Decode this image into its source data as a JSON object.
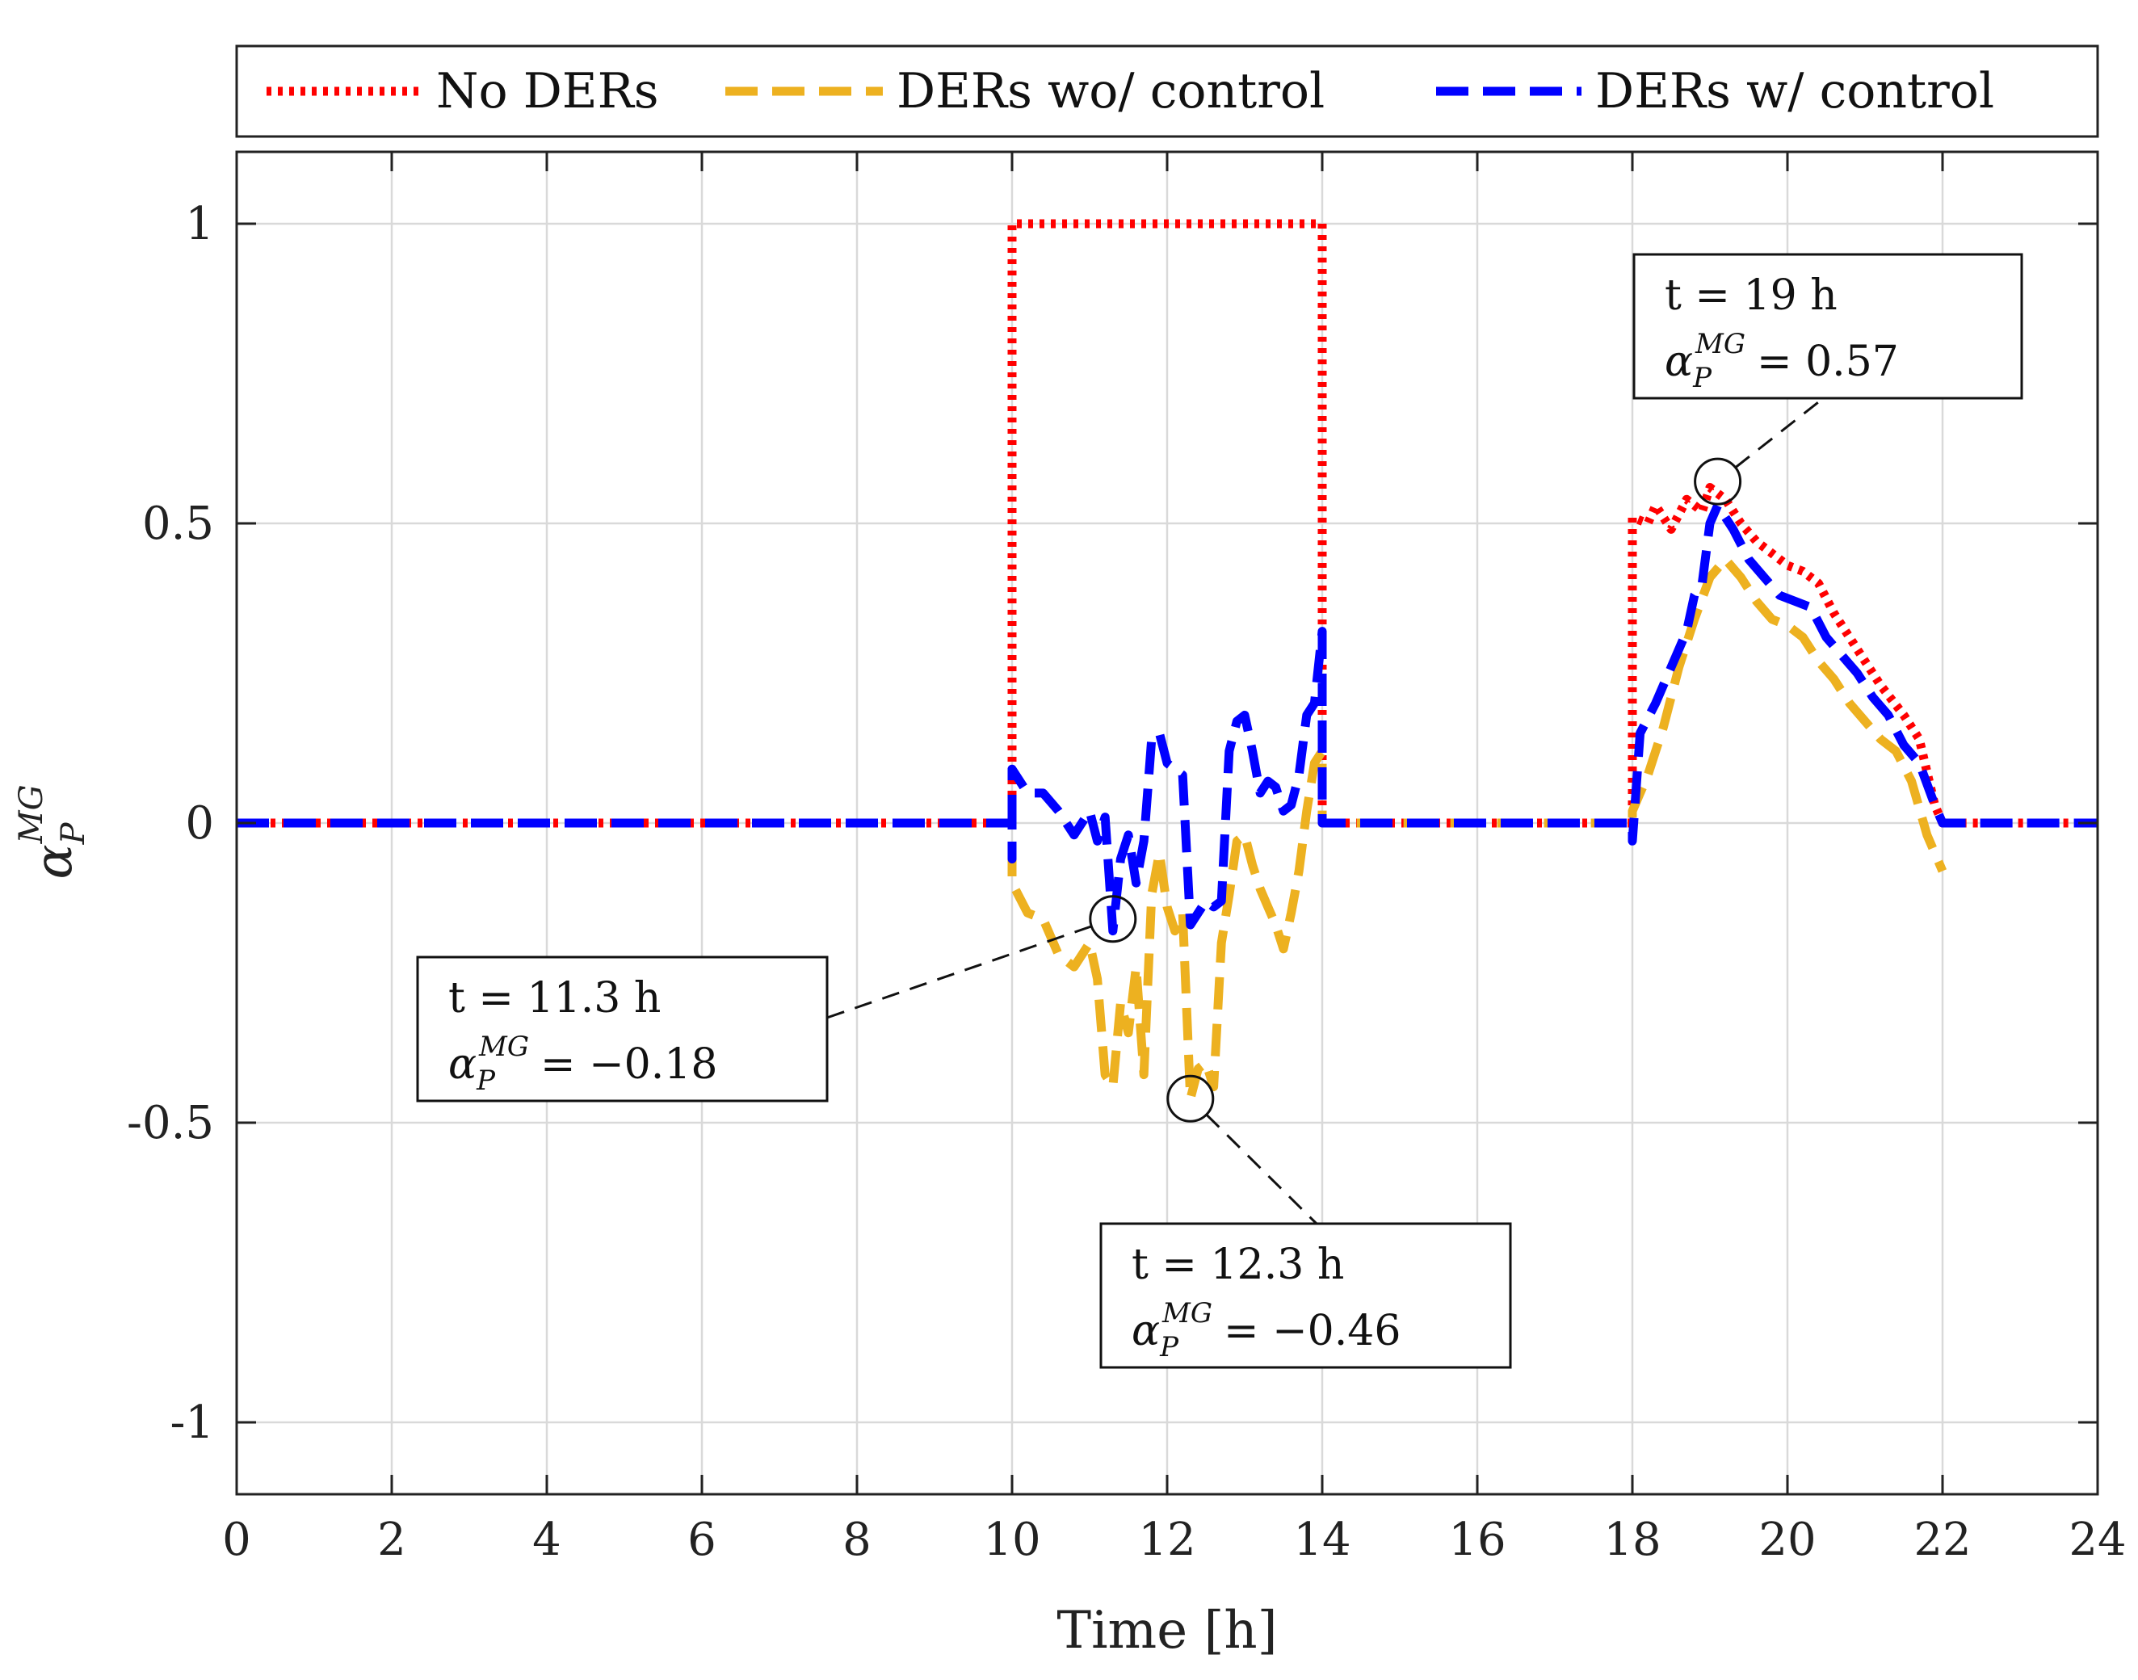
{
  "chart_data": {
    "type": "line",
    "xlabel": "Time [h]",
    "ylabel": "α",
    "ylabel_sub": "P",
    "ylabel_sup": "MG",
    "xlim": [
      0,
      24
    ],
    "ylim": [
      -1.12,
      1.12
    ],
    "x_ticks": [
      0,
      2,
      4,
      6,
      8,
      10,
      12,
      14,
      16,
      18,
      20,
      22,
      24
    ],
    "x_tick_labels": [
      "0",
      "2",
      "4",
      "6",
      "8",
      "10",
      "12",
      "14",
      "16",
      "18",
      "20",
      "22",
      "24"
    ],
    "y_ticks": [
      -1,
      -0.5,
      0,
      0.5,
      1
    ],
    "y_tick_labels": [
      "-1",
      "-0.5",
      "0",
      "0.5",
      "1"
    ],
    "grid": true,
    "legend_position": "top (outside, horizontal)",
    "series": [
      {
        "name": "No DERs",
        "color": "#ff0000",
        "style": "dotted",
        "points": [
          [
            0,
            0
          ],
          [
            10,
            0
          ],
          [
            10,
            1
          ],
          [
            14,
            1
          ],
          [
            14,
            0
          ],
          [
            18,
            0
          ],
          [
            18,
            0.51
          ],
          [
            18.2,
            0.5
          ],
          [
            18.3,
            0.53
          ],
          [
            18.5,
            0.49
          ],
          [
            18.7,
            0.54
          ],
          [
            18.9,
            0.52
          ],
          [
            19.0,
            0.56
          ],
          [
            19.2,
            0.54
          ],
          [
            19.4,
            0.5
          ],
          [
            19.6,
            0.47
          ],
          [
            19.8,
            0.45
          ],
          [
            20.0,
            0.43
          ],
          [
            20.2,
            0.42
          ],
          [
            20.4,
            0.4
          ],
          [
            20.6,
            0.35
          ],
          [
            20.8,
            0.31
          ],
          [
            21.0,
            0.27
          ],
          [
            21.2,
            0.23
          ],
          [
            21.5,
            0.18
          ],
          [
            21.7,
            0.14
          ],
          [
            21.9,
            0.03
          ],
          [
            22,
            0
          ],
          [
            24,
            0
          ]
        ]
      },
      {
        "name": "DERs wo/ control",
        "color": "#edb120",
        "style": "dashed",
        "points": [
          [
            0,
            0
          ],
          [
            10,
            0
          ],
          [
            10,
            -0.1
          ],
          [
            10.2,
            -0.15
          ],
          [
            10.4,
            -0.16
          ],
          [
            10.6,
            -0.22
          ],
          [
            10.8,
            -0.24
          ],
          [
            11.0,
            -0.2
          ],
          [
            11.1,
            -0.26
          ],
          [
            11.2,
            -0.42
          ],
          [
            11.3,
            -0.44
          ],
          [
            11.4,
            -0.3
          ],
          [
            11.5,
            -0.35
          ],
          [
            11.6,
            -0.24
          ],
          [
            11.7,
            -0.42
          ],
          [
            11.8,
            -0.12
          ],
          [
            11.9,
            -0.05
          ],
          [
            12.0,
            -0.14
          ],
          [
            12.1,
            -0.18
          ],
          [
            12.2,
            -0.15
          ],
          [
            12.3,
            -0.46
          ],
          [
            12.4,
            -0.41
          ],
          [
            12.5,
            -0.4
          ],
          [
            12.6,
            -0.44
          ],
          [
            12.7,
            -0.2
          ],
          [
            12.8,
            -0.12
          ],
          [
            12.9,
            -0.03
          ],
          [
            13.0,
            -0.02
          ],
          [
            13.1,
            -0.07
          ],
          [
            13.2,
            -0.11
          ],
          [
            13.3,
            -0.14
          ],
          [
            13.4,
            -0.17
          ],
          [
            13.5,
            -0.21
          ],
          [
            13.6,
            -0.15
          ],
          [
            13.7,
            -0.08
          ],
          [
            13.8,
            0.02
          ],
          [
            13.9,
            0.1
          ],
          [
            14.0,
            0.12
          ],
          [
            14.0,
            0
          ],
          [
            18,
            0
          ],
          [
            18,
            0.02
          ],
          [
            18.2,
            0.08
          ],
          [
            18.4,
            0.16
          ],
          [
            18.6,
            0.26
          ],
          [
            18.8,
            0.34
          ],
          [
            19.0,
            0.41
          ],
          [
            19.2,
            0.44
          ],
          [
            19.4,
            0.41
          ],
          [
            19.6,
            0.37
          ],
          [
            19.8,
            0.34
          ],
          [
            20.0,
            0.33
          ],
          [
            20.2,
            0.31
          ],
          [
            20.4,
            0.27
          ],
          [
            20.6,
            0.24
          ],
          [
            20.8,
            0.2
          ],
          [
            21.0,
            0.17
          ],
          [
            21.2,
            0.14
          ],
          [
            21.4,
            0.12
          ],
          [
            21.6,
            0.07
          ],
          [
            21.8,
            -0.02
          ],
          [
            22,
            -0.08
          ]
        ]
      },
      {
        "name": "DERs w/ control",
        "color": "#0000ff",
        "style": "dashed",
        "points": [
          [
            0,
            0
          ],
          [
            10,
            0
          ],
          [
            10,
            -0.06
          ],
          [
            10.0,
            0.09
          ],
          [
            10.2,
            0.05
          ],
          [
            10.4,
            0.05
          ],
          [
            10.6,
            0.02
          ],
          [
            10.8,
            -0.02
          ],
          [
            11.0,
            0.02
          ],
          [
            11.1,
            -0.03
          ],
          [
            11.2,
            0.01
          ],
          [
            11.3,
            -0.18
          ],
          [
            11.4,
            -0.06
          ],
          [
            11.5,
            -0.02
          ],
          [
            11.6,
            -0.1
          ],
          [
            11.7,
            -0.03
          ],
          [
            11.8,
            0.14
          ],
          [
            11.9,
            0.15
          ],
          [
            12.0,
            0.1
          ],
          [
            12.2,
            0.08
          ],
          [
            12.3,
            -0.17
          ],
          [
            12.4,
            -0.15
          ],
          [
            12.5,
            -0.13
          ],
          [
            12.6,
            -0.14
          ],
          [
            12.7,
            -0.13
          ],
          [
            12.8,
            0.12
          ],
          [
            12.9,
            0.17
          ],
          [
            13.0,
            0.18
          ],
          [
            13.1,
            0.12
          ],
          [
            13.2,
            0.05
          ],
          [
            13.3,
            0.07
          ],
          [
            13.4,
            0.06
          ],
          [
            13.5,
            0.02
          ],
          [
            13.6,
            0.03
          ],
          [
            13.7,
            0.08
          ],
          [
            13.8,
            0.18
          ],
          [
            13.9,
            0.2
          ],
          [
            14.0,
            0.32
          ],
          [
            14.0,
            0
          ],
          [
            18,
            0
          ],
          [
            18,
            -0.03
          ],
          [
            18.1,
            0.15
          ],
          [
            18.3,
            0.2
          ],
          [
            18.5,
            0.26
          ],
          [
            18.7,
            0.32
          ],
          [
            18.8,
            0.38
          ],
          [
            18.9,
            0.4
          ],
          [
            19.0,
            0.5
          ],
          [
            19.1,
            0.53
          ],
          [
            19.3,
            0.49
          ],
          [
            19.5,
            0.44
          ],
          [
            19.7,
            0.41
          ],
          [
            19.9,
            0.38
          ],
          [
            20.1,
            0.37
          ],
          [
            20.3,
            0.36
          ],
          [
            20.5,
            0.31
          ],
          [
            20.7,
            0.28
          ],
          [
            20.9,
            0.25
          ],
          [
            21.1,
            0.21
          ],
          [
            21.3,
            0.18
          ],
          [
            21.5,
            0.13
          ],
          [
            21.7,
            0.1
          ],
          [
            21.9,
            0.03
          ],
          [
            22,
            0
          ],
          [
            24,
            0
          ]
        ]
      }
    ],
    "annotations": [
      {
        "line1": "t = 19 h",
        "alpha": "α",
        "sub": "P",
        "sup": "MG",
        "value": "= 0.57",
        "point": [
          19.1,
          0.57
        ],
        "box_anchor": "upper-right"
      },
      {
        "line1": "t = 11.3 h",
        "alpha": "α",
        "sub": "P",
        "sup": "MG",
        "value": "= −0.18",
        "point": [
          11.3,
          -0.16
        ],
        "box_anchor": "left"
      },
      {
        "line1": "t = 12.3 h",
        "alpha": "α",
        "sub": "P",
        "sup": "MG",
        "value": "= −0.46",
        "point": [
          12.3,
          -0.46
        ],
        "box_anchor": "bottom"
      }
    ]
  }
}
